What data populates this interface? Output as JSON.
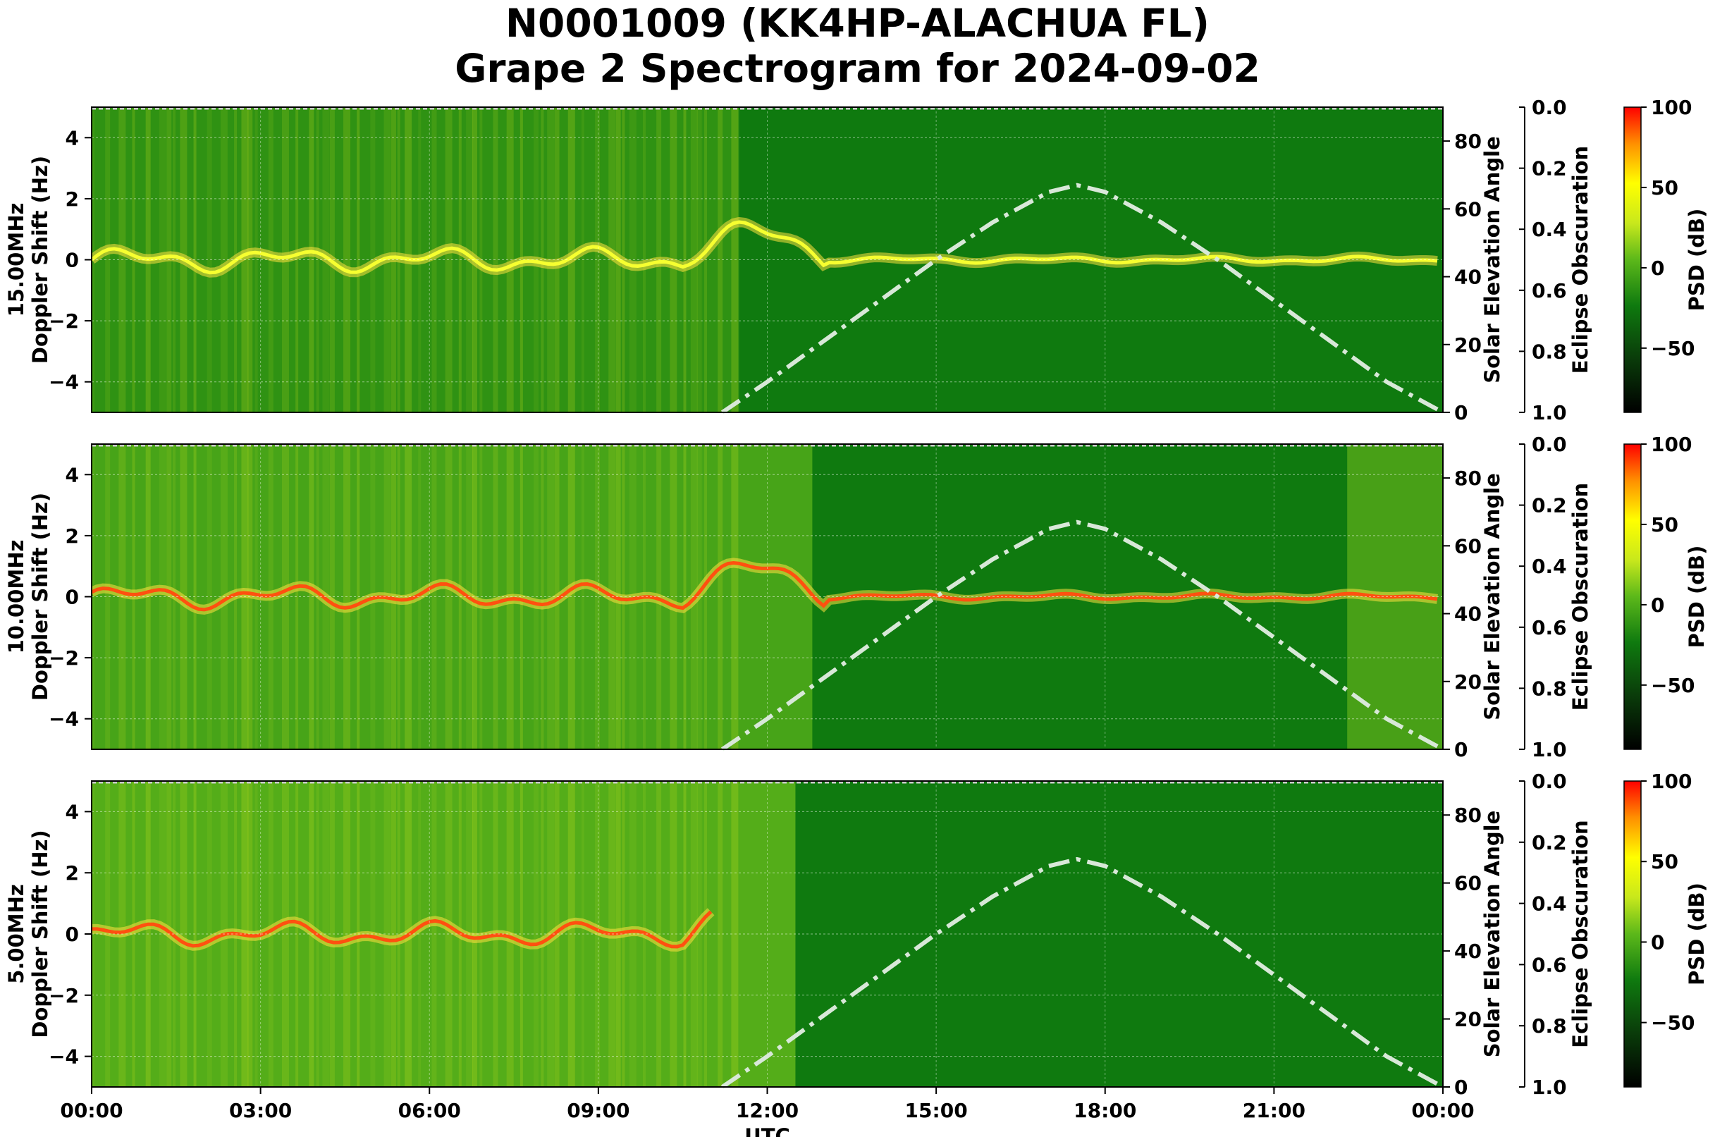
{
  "title": {
    "line1": "N0001009 (KK4HP-ALACHUA FL)",
    "line2": "Grape 2 Spectrogram for 2024-09-02"
  },
  "colors": {
    "background_green": "#0f7a0f",
    "colormap": [
      "#000000",
      "#0a3d0a",
      "#0f7a0f",
      "#5cb81a",
      "#c8e81c",
      "#ffff00",
      "#ff9000",
      "#ff0000"
    ],
    "solar_curve": "#d8e8d8"
  },
  "chart_data": [
    {
      "type": "heatmap",
      "panel": "15.00MHz",
      "ylabel": "15.00MHz\nDoppler Shift (Hz)",
      "ylim": [
        -5,
        5
      ],
      "yticks": [
        4,
        2,
        0,
        -2,
        -4
      ],
      "right_axis": {
        "label": "Solar Elevation Angle",
        "ylim": [
          0,
          90
        ],
        "ticks": [
          80,
          60,
          40,
          20,
          0
        ]
      },
      "eclipse_axis": {
        "label": "Eclipse Obscuration",
        "ylim": [
          0.0,
          1.0
        ],
        "ticks": [
          "0.0",
          "0.2",
          "0.4",
          "0.6",
          "0.8",
          "1.0"
        ]
      },
      "colorbar": {
        "label": "PSD (dB)",
        "ticks": [
          100,
          50,
          0,
          -50
        ]
      }
    },
    {
      "type": "heatmap",
      "panel": "10.00MHz",
      "ylabel": "10.00MHz\nDoppler Shift (Hz)",
      "ylim": [
        -5,
        5
      ],
      "yticks": [
        4,
        2,
        0,
        -2,
        -4
      ],
      "right_axis": {
        "label": "Solar Elevation Angle",
        "ylim": [
          0,
          90
        ],
        "ticks": [
          80,
          60,
          40,
          20,
          0
        ]
      },
      "eclipse_axis": {
        "label": "Eclipse Obscuration",
        "ylim": [
          0.0,
          1.0
        ],
        "ticks": [
          "0.0",
          "0.2",
          "0.4",
          "0.6",
          "0.8",
          "1.0"
        ]
      },
      "colorbar": {
        "label": "PSD (dB)",
        "ticks": [
          100,
          50,
          0,
          -50
        ]
      }
    },
    {
      "type": "heatmap",
      "panel": "5.00MHz",
      "ylabel": "5.00MHz\nDoppler Shift (Hz)",
      "ylim": [
        -5,
        5
      ],
      "yticks": [
        4,
        2,
        0,
        -2,
        -4
      ],
      "right_axis": {
        "label": "Solar Elevation Angle",
        "ylim": [
          0,
          90
        ],
        "ticks": [
          80,
          60,
          40,
          20,
          0
        ]
      },
      "eclipse_axis": {
        "label": "Eclipse Obscuration",
        "ylim": [
          0.0,
          1.0
        ],
        "ticks": [
          "0.0",
          "0.2",
          "0.4",
          "0.6",
          "0.8",
          "1.0"
        ]
      },
      "colorbar": {
        "label": "PSD (dB)",
        "ticks": [
          100,
          50,
          0,
          -50
        ]
      }
    }
  ],
  "x_axis": {
    "label": "UTC",
    "ticks": [
      "00:00",
      "03:00",
      "06:00",
      "09:00",
      "12:00",
      "15:00",
      "18:00",
      "21:00",
      "00:00"
    ]
  },
  "solar_elevation": {
    "hours": [
      11.2,
      12,
      13,
      14,
      15,
      16,
      17,
      17.5,
      18,
      19,
      20,
      21,
      22,
      23,
      24
    ],
    "degrees": [
      0,
      9,
      21,
      33,
      45,
      56,
      65,
      67,
      65,
      56,
      45,
      33,
      21,
      9,
      0
    ]
  }
}
